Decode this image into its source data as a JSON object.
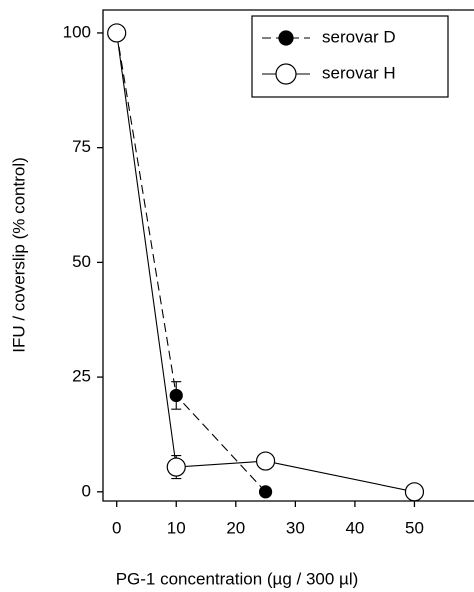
{
  "chart_data": {
    "type": "line",
    "x_label": "PG-1 concentration (µg / 300 µl)",
    "y_label": "IFU / coverslip (% control)",
    "x": [
      0,
      10,
      25,
      50
    ],
    "series": [
      {
        "name": "serovar D",
        "color": "#000000",
        "line_style": "dashed",
        "marker": "filled",
        "values": [
          100,
          21,
          0,
          null
        ],
        "errors": [
          null,
          3,
          null,
          null
        ]
      },
      {
        "name": "serovar H",
        "color": "#000000",
        "line_style": "solid",
        "marker": "open",
        "values": [
          100,
          5.4,
          6.7,
          0
        ],
        "errors": [
          null,
          2.5,
          null,
          null
        ]
      }
    ],
    "xlim": [
      -2.3,
      60
    ],
    "xticks": [
      0,
      10,
      20,
      30,
      40,
      50
    ],
    "ylim": [
      -2,
      105
    ],
    "yticks": [
      0,
      25,
      50,
      75,
      100
    ],
    "legend": "upper right",
    "grid": false
  }
}
